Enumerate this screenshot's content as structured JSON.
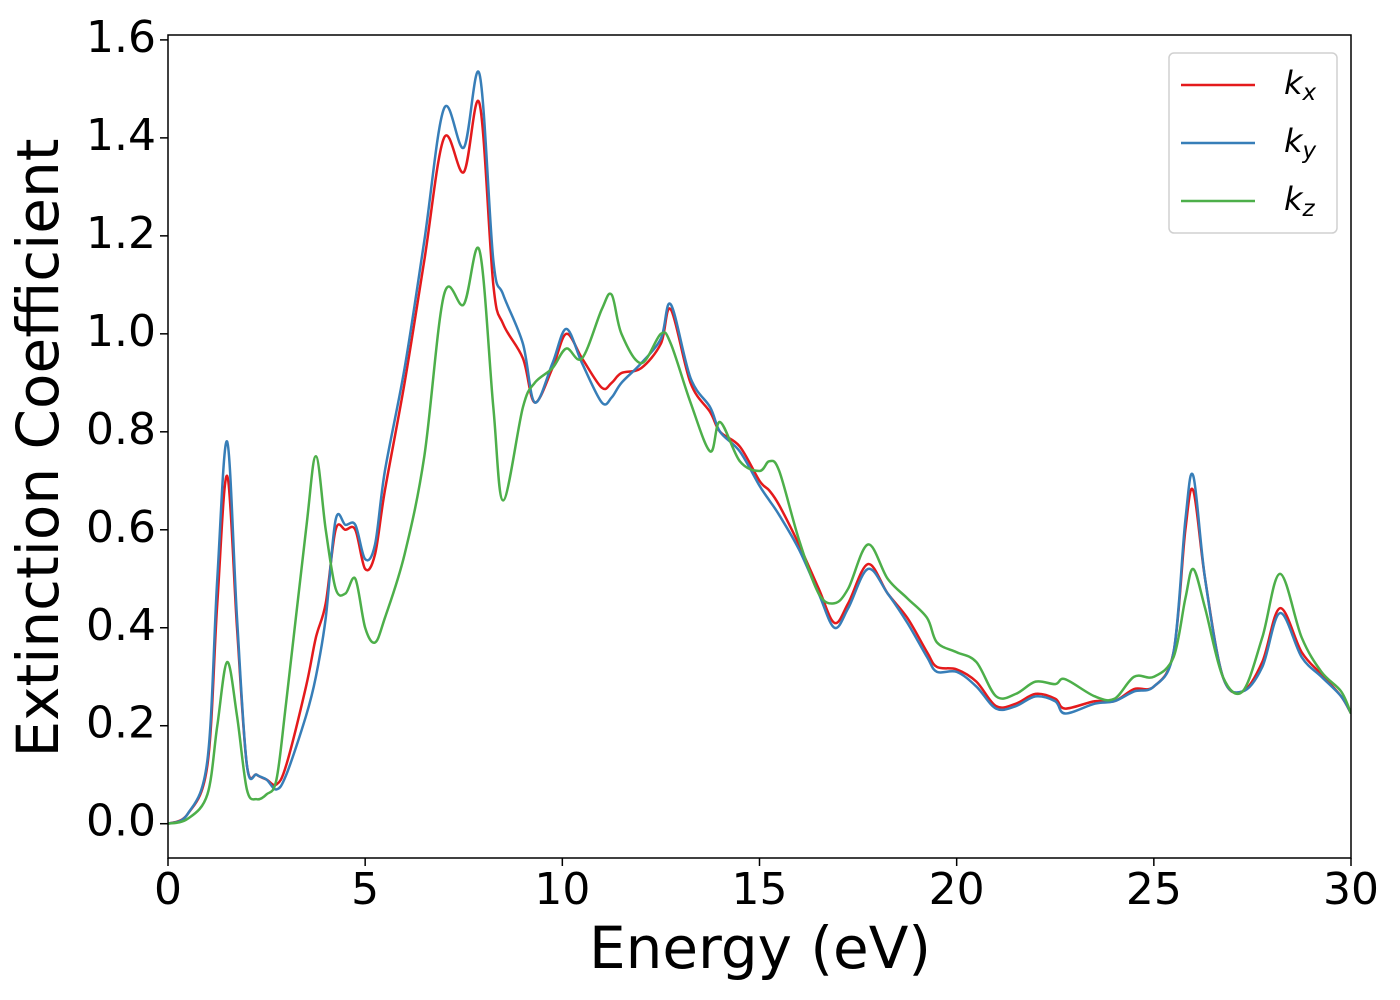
{
  "chart_data": {
    "type": "line",
    "xlabel": "Energy (eV)",
    "ylabel": "Extinction Coefficient",
    "x": [
      0,
      0.5,
      1,
      1.25,
      1.5,
      1.75,
      2,
      2.25,
      2.5,
      2.75,
      3,
      3.5,
      3.75,
      4,
      4.25,
      4.5,
      4.75,
      5,
      5.25,
      5.5,
      6,
      6.5,
      7,
      7.5,
      7.9,
      8.25,
      8.5,
      9,
      9.3,
      9.75,
      10.1,
      10.5,
      11,
      11.25,
      11.5,
      12,
      12.5,
      12.75,
      13.25,
      13.75,
      14,
      14.5,
      15,
      15.25,
      15.5,
      16,
      16.5,
      16.9,
      17.25,
      17.75,
      18.25,
      18.75,
      19.25,
      19.5,
      20,
      20.5,
      21,
      21.5,
      22,
      22.5,
      22.75,
      23.5,
      24,
      24.5,
      25,
      25.5,
      25.8,
      26,
      26.3,
      26.75,
      27.25,
      27.75,
      28.2,
      28.75,
      29.25,
      29.75,
      30
    ],
    "series": [
      {
        "name": "kx",
        "color": "#e41a1c",
        "values": [
          0,
          0.02,
          0.12,
          0.45,
          0.71,
          0.4,
          0.12,
          0.1,
          0.09,
          0.08,
          0.12,
          0.28,
          0.38,
          0.45,
          0.6,
          0.6,
          0.6,
          0.52,
          0.55,
          0.68,
          0.9,
          1.15,
          1.4,
          1.33,
          1.47,
          1.1,
          1.02,
          0.95,
          0.86,
          0.93,
          1.0,
          0.95,
          0.89,
          0.9,
          0.92,
          0.93,
          0.98,
          1.05,
          0.9,
          0.84,
          0.8,
          0.77,
          0.7,
          0.68,
          0.65,
          0.57,
          0.48,
          0.41,
          0.45,
          0.53,
          0.47,
          0.42,
          0.35,
          0.32,
          0.315,
          0.29,
          0.24,
          0.245,
          0.265,
          0.255,
          0.235,
          0.25,
          0.25,
          0.275,
          0.28,
          0.35,
          0.6,
          0.68,
          0.5,
          0.3,
          0.27,
          0.33,
          0.44,
          0.35,
          0.305,
          0.26,
          0.225
        ]
      },
      {
        "name": "ky",
        "color": "#377eb8",
        "values": [
          0,
          0.02,
          0.13,
          0.5,
          0.78,
          0.42,
          0.12,
          0.1,
          0.09,
          0.07,
          0.1,
          0.22,
          0.3,
          0.42,
          0.62,
          0.61,
          0.61,
          0.54,
          0.57,
          0.72,
          0.93,
          1.19,
          1.46,
          1.38,
          1.53,
          1.15,
          1.08,
          0.98,
          0.86,
          0.94,
          1.01,
          0.94,
          0.86,
          0.87,
          0.9,
          0.94,
          0.99,
          1.06,
          0.91,
          0.85,
          0.8,
          0.76,
          0.69,
          0.66,
          0.63,
          0.56,
          0.47,
          0.4,
          0.44,
          0.52,
          0.47,
          0.41,
          0.34,
          0.31,
          0.31,
          0.28,
          0.235,
          0.24,
          0.26,
          0.25,
          0.225,
          0.245,
          0.25,
          0.27,
          0.28,
          0.35,
          0.62,
          0.71,
          0.5,
          0.3,
          0.27,
          0.32,
          0.43,
          0.34,
          0.3,
          0.26,
          0.225
        ]
      },
      {
        "name": "kz",
        "color": "#4daf4a",
        "values": [
          0,
          0.01,
          0.06,
          0.2,
          0.33,
          0.22,
          0.07,
          0.05,
          0.06,
          0.09,
          0.25,
          0.6,
          0.75,
          0.6,
          0.48,
          0.47,
          0.5,
          0.4,
          0.37,
          0.42,
          0.55,
          0.75,
          1.08,
          1.06,
          1.17,
          0.85,
          0.66,
          0.85,
          0.9,
          0.93,
          0.97,
          0.95,
          1.05,
          1.08,
          1.0,
          0.94,
          1.0,
          0.98,
          0.86,
          0.76,
          0.82,
          0.74,
          0.72,
          0.74,
          0.72,
          0.58,
          0.47,
          0.45,
          0.48,
          0.57,
          0.5,
          0.46,
          0.42,
          0.37,
          0.35,
          0.33,
          0.26,
          0.265,
          0.29,
          0.285,
          0.295,
          0.26,
          0.255,
          0.3,
          0.3,
          0.34,
          0.46,
          0.52,
          0.44,
          0.3,
          0.27,
          0.38,
          0.51,
          0.38,
          0.31,
          0.27,
          0.225
        ]
      }
    ],
    "xlim": [
      0,
      30
    ],
    "xticks": [
      0,
      5,
      10,
      15,
      20,
      25,
      30
    ],
    "ylim": [
      -0.07,
      1.61
    ],
    "yticks": [
      {
        "value": 0,
        "label": "0.0"
      },
      0.2,
      0.4,
      0.6,
      0.8,
      {
        "value": 1,
        "label": "1.0"
      },
      1.2,
      1.4,
      1.6
    ],
    "legend": "upper right",
    "grid": false
  }
}
